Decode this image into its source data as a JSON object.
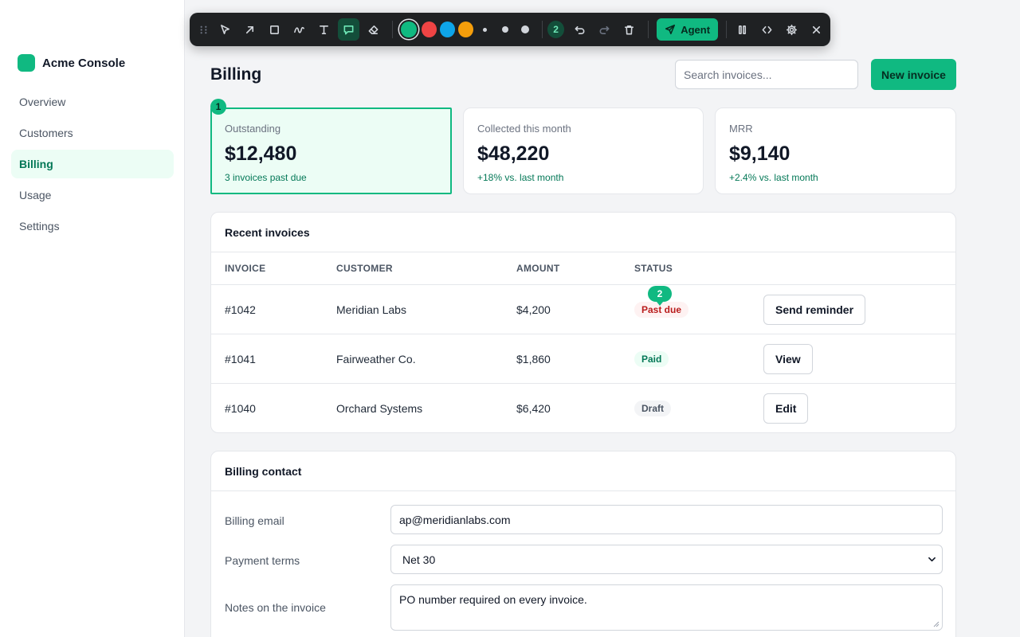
{
  "app": {
    "name": "Acme Console",
    "brand_color": "#10b981"
  },
  "sidebar": {
    "items": [
      {
        "label": "Overview",
        "active": false
      },
      {
        "label": "Customers",
        "active": false
      },
      {
        "label": "Billing",
        "active": true
      },
      {
        "label": "Usage",
        "active": false
      },
      {
        "label": "Settings",
        "active": false
      }
    ]
  },
  "toolbar": {
    "tools": [
      "grip-icon",
      "select-arrow-icon",
      "arrow-icon",
      "rectangle-icon",
      "freehand-icon",
      "text-icon",
      "comment-icon",
      "eraser-icon"
    ],
    "active_tool": "comment-icon",
    "colors": [
      "#10b981",
      "#ef4444",
      "#0ea5e9",
      "#f59e0b"
    ],
    "selected_color": "#10b981",
    "stroke_sizes": [
      "small",
      "medium",
      "large"
    ],
    "annotation_count": "2",
    "agent_label": "Agent",
    "actions": [
      "undo-icon",
      "redo-icon",
      "trash-icon",
      "pause-icon",
      "collapse-icon",
      "settings-icon",
      "close-icon"
    ]
  },
  "header": {
    "title": "Billing",
    "search_placeholder": "Search invoices...",
    "new_invoice_label": "New invoice"
  },
  "stats": [
    {
      "label": "Outstanding",
      "value": "$12,480",
      "sub": "3 invoices past due",
      "highlighted": true,
      "marker": "1"
    },
    {
      "label": "Collected this month",
      "value": "$48,220",
      "sub": "+18% vs. last month"
    },
    {
      "label": "MRR",
      "value": "$9,140",
      "sub": "+2.4% vs. last month"
    }
  ],
  "invoices": {
    "title": "Recent invoices",
    "columns": [
      "INVOICE",
      "CUSTOMER",
      "AMOUNT",
      "STATUS"
    ],
    "rows": [
      {
        "invoice": "#1042",
        "customer": "Meridian Labs",
        "amount": "$4,200",
        "status": "Past due",
        "action": "Send reminder",
        "marker": "2"
      },
      {
        "invoice": "#1041",
        "customer": "Fairweather Co.",
        "amount": "$1,860",
        "status": "Paid",
        "action": "View"
      },
      {
        "invoice": "#1040",
        "customer": "Orchard Systems",
        "amount": "$6,420",
        "status": "Draft",
        "action": "Edit"
      }
    ]
  },
  "contact": {
    "title": "Billing contact",
    "email_label": "Billing email",
    "email_value": "ap@meridianlabs.com",
    "terms_label": "Payment terms",
    "terms_value": "Net 30",
    "notes_label": "Notes on the invoice",
    "notes_value": "PO number required on every invoice."
  }
}
